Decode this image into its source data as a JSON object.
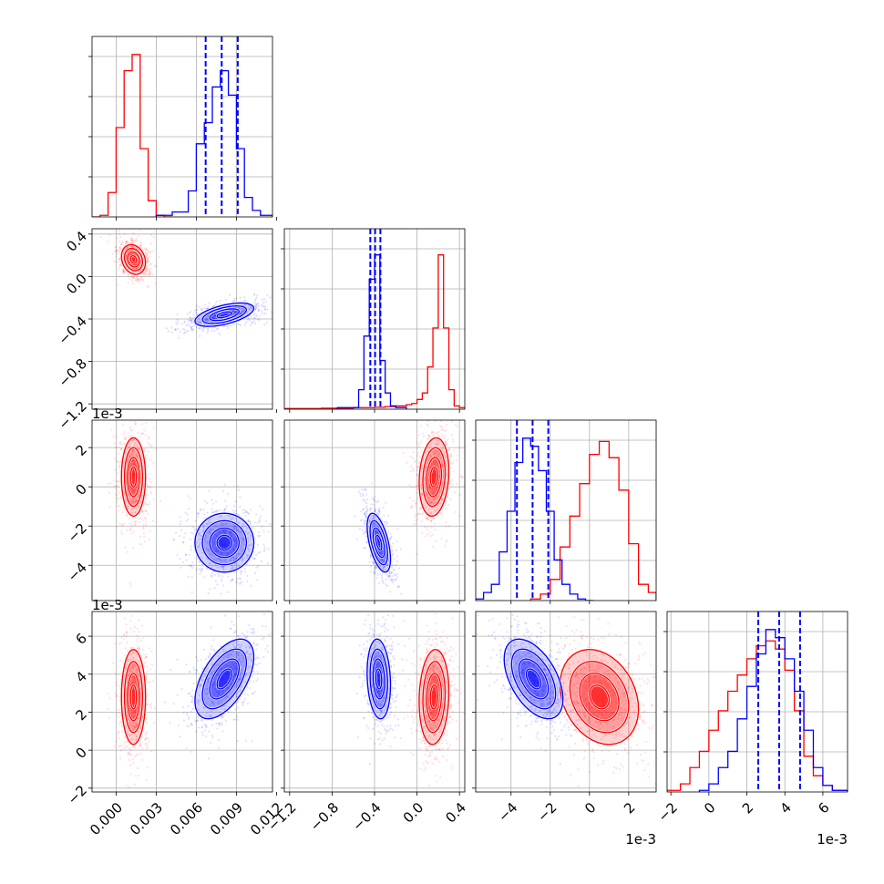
{
  "colors": {
    "red": "#ff0000",
    "blue": "#0000ff",
    "grid": "#b0b0b0",
    "axis": "#000000"
  },
  "chart_data": {
    "type": "corner",
    "title": "",
    "legend": "none",
    "grid": true,
    "params": [
      {
        "id": "p1",
        "offset_label": "",
        "xlim": [
          -0.0018,
          0.0117
        ],
        "xticks": [
          "0.000",
          "0.003",
          "0.006",
          "0.009",
          "0.012"
        ]
      },
      {
        "id": "p2",
        "offset_label": "",
        "xlim": [
          -1.25,
          0.45
        ],
        "xticks": [
          "-1.2",
          "-0.8",
          "-0.4",
          "0.0",
          "0.4"
        ]
      },
      {
        "id": "p3",
        "offset_label": "1e-3",
        "xlim": [
          -5.8,
          3.4
        ],
        "xticks": [
          "-4",
          "-2",
          "0",
          "2"
        ]
      },
      {
        "id": "p4",
        "offset_label": "1e-3",
        "xlim": [
          -2.2,
          7.3
        ],
        "xticks": [
          "-2",
          "0",
          "2",
          "4",
          "6"
        ]
      }
    ],
    "ylabels": {
      "p2": [
        "-1.2",
        "-0.8",
        "-0.4",
        "0.0",
        "0.4"
      ],
      "p3": [
        "-4",
        "-2",
        "0",
        "2"
      ],
      "p4": [
        "-2",
        "0",
        "2",
        "4",
        "6"
      ]
    },
    "series": [
      {
        "name": "",
        "color": "red",
        "mean": [
          0.0013,
          0.16,
          0.5,
          2.8
        ],
        "std": [
          0.00045,
          0.07,
          1.0,
          1.25
        ],
        "hist": {
          "p1": {
            "edges": [
              -0.0018,
              -0.0012,
              -0.0006,
              0.0,
              0.0006,
              0.0012,
              0.0018,
              0.0024,
              0.003,
              0.0036,
              0.0042
            ],
            "counts": [
              0,
              0.01,
              0.15,
              0.55,
              0.9,
              1.0,
              0.42,
              0.1,
              0.01,
              0,
              0
            ]
          },
          "p2": {
            "edges": [
              -1.25,
              -0.9,
              -0.6,
              -0.4,
              -0.3,
              -0.2,
              -0.1,
              -0.05,
              0.0,
              0.05,
              0.1,
              0.15,
              0.2,
              0.25,
              0.3,
              0.35,
              0.4,
              0.45
            ],
            "counts": [
              0.004,
              0.006,
              0.01,
              0.012,
              0.016,
              0.02,
              0.028,
              0.035,
              0.06,
              0.1,
              0.26,
              0.5,
              0.95,
              0.5,
              0.12,
              0.02,
              0.01
            ]
          },
          "p3": {
            "edges": [
              -3.0,
              -2.5,
              -2.0,
              -1.5,
              -1.0,
              -0.5,
              0.0,
              0.5,
              1.0,
              1.5,
              2.0,
              2.5,
              3.0,
              3.4
            ],
            "counts": [
              0.01,
              0.04,
              0.13,
              0.33,
              0.52,
              0.72,
              0.9,
              0.98,
              0.88,
              0.68,
              0.35,
              0.1,
              0.05
            ]
          },
          "p4": {
            "edges": [
              -2.2,
              -1.5,
              -1.0,
              -0.5,
              0.0,
              0.5,
              1.0,
              1.5,
              2.0,
              2.5,
              3.0,
              3.5,
              4.0,
              4.5,
              5.0,
              5.5,
              6.0,
              6.5,
              7.3
            ],
            "counts": [
              0.01,
              0.05,
              0.15,
              0.25,
              0.38,
              0.5,
              0.62,
              0.72,
              0.82,
              0.9,
              0.93,
              0.88,
              0.75,
              0.5,
              0.22,
              0.1,
              0.04,
              0.01
            ]
          }
        },
        "pairs": {
          "p2|p1": {
            "rho": -0.2
          },
          "p3|p1": {
            "rho": 0.0
          },
          "p3|p2": {
            "rho": 0.15
          },
          "p4|p1": {
            "rho": 0.0
          },
          "p4|p2": {
            "rho": 0.1
          },
          "p4|p3": {
            "rho": -0.25
          }
        }
      },
      {
        "name": "",
        "color": "blue",
        "mean": [
          0.0081,
          -0.36,
          -2.85,
          3.75
        ],
        "std": [
          0.0011,
          0.055,
          0.75,
          1.05
        ],
        "quantiles": {
          "p1": [
            0.0067,
            0.0079,
            0.0091
          ],
          "p2": [
            -0.44,
            -0.395,
            -0.345
          ],
          "p3": [
            -3.7,
            -2.9,
            -2.1
          ],
          "p4": [
            2.6,
            3.7,
            4.8
          ]
        },
        "hist": {
          "p1": {
            "edges": [
              0.003,
              0.0042,
              0.0054,
              0.006,
              0.0066,
              0.0072,
              0.0078,
              0.0084,
              0.009,
              0.0096,
              0.0102,
              0.0108,
              0.0117
            ],
            "counts": [
              0.01,
              0.03,
              0.16,
              0.45,
              0.58,
              0.8,
              0.9,
              0.75,
              0.42,
              0.12,
              0.04,
              0.01
            ]
          },
          "p2": {
            "edges": [
              -0.75,
              -0.55,
              -0.5,
              -0.45,
              -0.4,
              -0.35,
              -0.3,
              -0.25,
              -0.2,
              -0.1
            ],
            "counts": [
              0.01,
              0.12,
              0.45,
              0.8,
              0.95,
              0.3,
              0.1,
              0.02,
              0.01
            ]
          },
          "p3": {
            "edges": [
              -5.8,
              -5.4,
              -5.0,
              -4.6,
              -4.2,
              -3.8,
              -3.4,
              -3.0,
              -2.6,
              -2.2,
              -1.8,
              -1.4,
              -1.0,
              -0.6,
              -0.2,
              0.2
            ],
            "counts": [
              0.01,
              0.05,
              0.1,
              0.3,
              0.55,
              0.85,
              1.0,
              0.95,
              0.8,
              0.55,
              0.25,
              0.1,
              0.04,
              0.01,
              0.0
            ]
          },
          "p4": {
            "edges": [
              -0.5,
              0.0,
              0.5,
              1.0,
              1.5,
              2.0,
              2.5,
              3.0,
              3.5,
              4.0,
              4.5,
              5.0,
              5.5,
              6.0,
              6.5,
              7.3
            ],
            "counts": [
              0.01,
              0.05,
              0.15,
              0.25,
              0.45,
              0.65,
              0.85,
              1.0,
              0.95,
              0.82,
              0.62,
              0.38,
              0.15,
              0.04,
              0.01
            ]
          }
        },
        "pairs": {
          "p2|p1": {
            "rho": 0.55
          },
          "p3|p1": {
            "rho": 0.0
          },
          "p3|p2": {
            "rho": -0.55
          },
          "p4|p1": {
            "rho": 0.55
          },
          "p4|p2": {
            "rho": -0.15
          },
          "p4|p3": {
            "rho": -0.5
          }
        }
      }
    ]
  }
}
